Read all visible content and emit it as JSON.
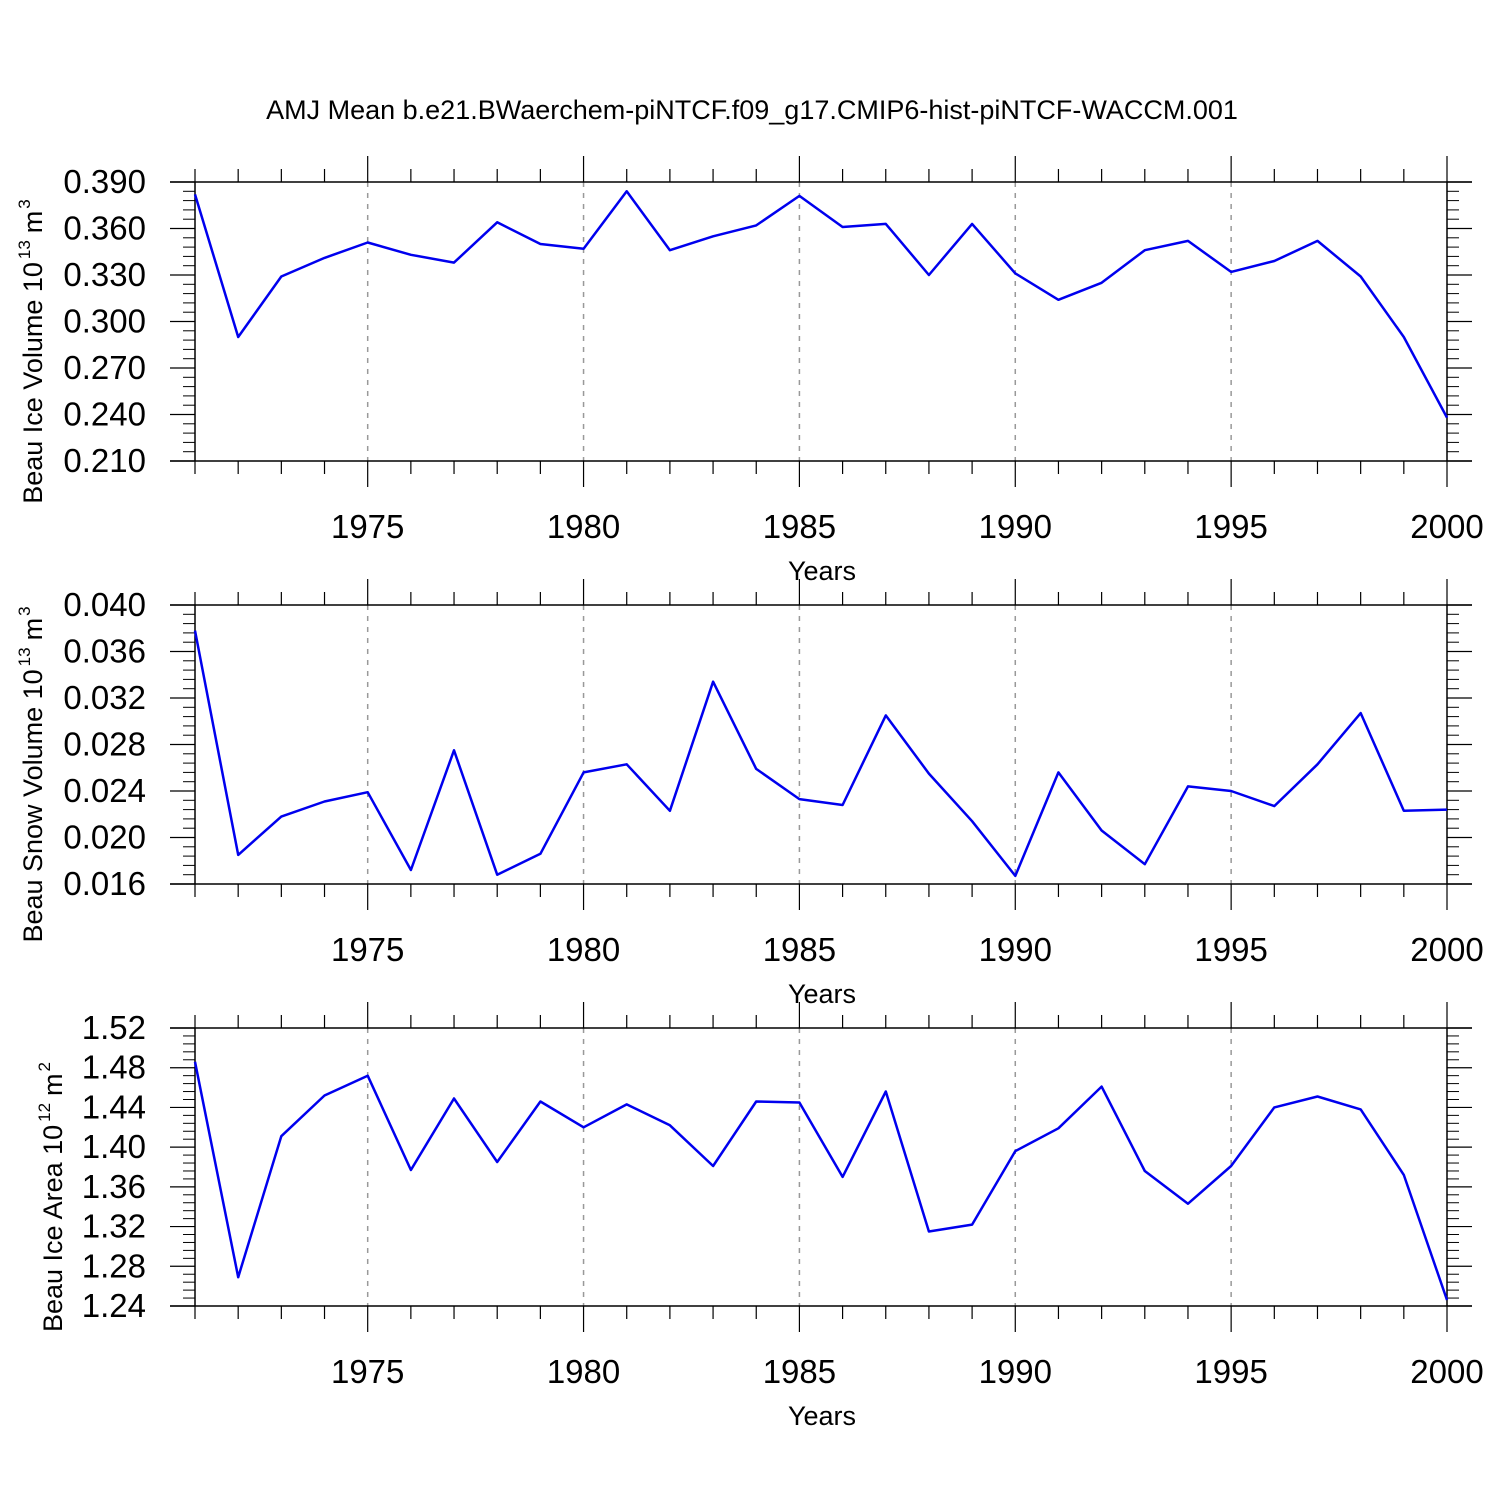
{
  "chart_data": [
    {
      "type": "line",
      "title": "AMJ Mean b.e21.BWaerchem-piNTCF.f09_g17.CMIP6-hist-piNTCF-WACCM.001",
      "xlabel": "Years",
      "ylabel": {
        "text": "Beau Ice Volume 10",
        "exponent": "13",
        "unit": "m",
        "unit_exponent": "3"
      },
      "xlim": [
        1971,
        2000
      ],
      "ylim": [
        0.21,
        0.39
      ],
      "xticks": [
        1975,
        1980,
        1985,
        1990,
        1995,
        2000
      ],
      "xtick_labels": [
        "1975",
        "1980",
        "1985",
        "1990",
        "1995",
        "2000"
      ],
      "yticks": [
        0.21,
        0.24,
        0.27,
        0.3,
        0.33,
        0.36,
        0.39
      ],
      "ytick_labels": [
        "0.210",
        "0.240",
        "0.270",
        "0.300",
        "0.330",
        "0.360",
        "0.390"
      ],
      "grid": "vertical dashed at major x ticks",
      "series": [
        {
          "name": "Beau Ice Volume",
          "color": "#0000ee",
          "x": [
            1971,
            1972,
            1973,
            1974,
            1975,
            1976,
            1977,
            1978,
            1979,
            1980,
            1981,
            1982,
            1983,
            1984,
            1985,
            1986,
            1987,
            1988,
            1989,
            1990,
            1991,
            1992,
            1993,
            1994,
            1995,
            1996,
            1997,
            1998,
            1999,
            2000
          ],
          "y": [
            0.382,
            0.29,
            0.329,
            0.341,
            0.351,
            0.343,
            0.338,
            0.364,
            0.35,
            0.347,
            0.384,
            0.346,
            0.355,
            0.362,
            0.381,
            0.361,
            0.363,
            0.33,
            0.363,
            0.331,
            0.314,
            0.325,
            0.346,
            0.352,
            0.332,
            0.339,
            0.352,
            0.329,
            0.29,
            0.238
          ]
        }
      ]
    },
    {
      "type": "line",
      "title": "",
      "xlabel": "Years",
      "ylabel": {
        "text": "Beau Snow Volume 10",
        "exponent": "13",
        "unit": "m",
        "unit_exponent": "3"
      },
      "xlim": [
        1971,
        2000
      ],
      "ylim": [
        0.016,
        0.04
      ],
      "xticks": [
        1975,
        1980,
        1985,
        1990,
        1995,
        2000
      ],
      "xtick_labels": [
        "1975",
        "1980",
        "1985",
        "1990",
        "1995",
        "2000"
      ],
      "yticks": [
        0.016,
        0.02,
        0.024,
        0.028,
        0.032,
        0.036,
        0.04
      ],
      "ytick_labels": [
        "0.016",
        "0.020",
        "0.024",
        "0.028",
        "0.032",
        "0.036",
        "0.040"
      ],
      "grid": "vertical dashed at major x ticks",
      "series": [
        {
          "name": "Beau Snow Volume",
          "color": "#0000ee",
          "x": [
            1971,
            1972,
            1973,
            1974,
            1975,
            1976,
            1977,
            1978,
            1979,
            1980,
            1981,
            1982,
            1983,
            1984,
            1985,
            1986,
            1987,
            1988,
            1989,
            1990,
            1991,
            1992,
            1993,
            1994,
            1995,
            1996,
            1997,
            1998,
            1999,
            2000
          ],
          "y": [
            0.0378,
            0.0185,
            0.0218,
            0.0231,
            0.0239,
            0.0172,
            0.0275,
            0.0168,
            0.0186,
            0.0256,
            0.0263,
            0.0223,
            0.0334,
            0.0259,
            0.0233,
            0.0228,
            0.0305,
            0.0255,
            0.0214,
            0.0167,
            0.0256,
            0.0206,
            0.0177,
            0.0244,
            0.024,
            0.0227,
            0.0263,
            0.0307,
            0.0223,
            0.0224
          ]
        }
      ]
    },
    {
      "type": "line",
      "title": "",
      "xlabel": "Years",
      "ylabel": {
        "text": "Beau Ice Area 10",
        "exponent": "12",
        "unit": "m",
        "unit_exponent": "2"
      },
      "xlim": [
        1971,
        2000
      ],
      "ylim": [
        1.24,
        1.52
      ],
      "xticks": [
        1975,
        1980,
        1985,
        1990,
        1995,
        2000
      ],
      "xtick_labels": [
        "1975",
        "1980",
        "1985",
        "1990",
        "1995",
        "2000"
      ],
      "yticks": [
        1.24,
        1.28,
        1.32,
        1.36,
        1.4,
        1.44,
        1.48,
        1.52
      ],
      "ytick_labels": [
        "1.24",
        "1.28",
        "1.32",
        "1.36",
        "1.40",
        "1.44",
        "1.48",
        "1.52"
      ],
      "grid": "vertical dashed at major x ticks",
      "series": [
        {
          "name": "Beau Ice Area",
          "color": "#0000ee",
          "x": [
            1971,
            1972,
            1973,
            1974,
            1975,
            1976,
            1977,
            1978,
            1979,
            1980,
            1981,
            1982,
            1983,
            1984,
            1985,
            1986,
            1987,
            1988,
            1989,
            1990,
            1991,
            1992,
            1993,
            1994,
            1995,
            1996,
            1997,
            1998,
            1999,
            2000
          ],
          "y": [
            1.486,
            1.269,
            1.411,
            1.452,
            1.472,
            1.377,
            1.449,
            1.385,
            1.446,
            1.42,
            1.443,
            1.422,
            1.381,
            1.446,
            1.445,
            1.37,
            1.456,
            1.315,
            1.322,
            1.396,
            1.419,
            1.461,
            1.376,
            1.343,
            1.381,
            1.44,
            1.451,
            1.438,
            1.372,
            1.246
          ]
        }
      ]
    }
  ]
}
